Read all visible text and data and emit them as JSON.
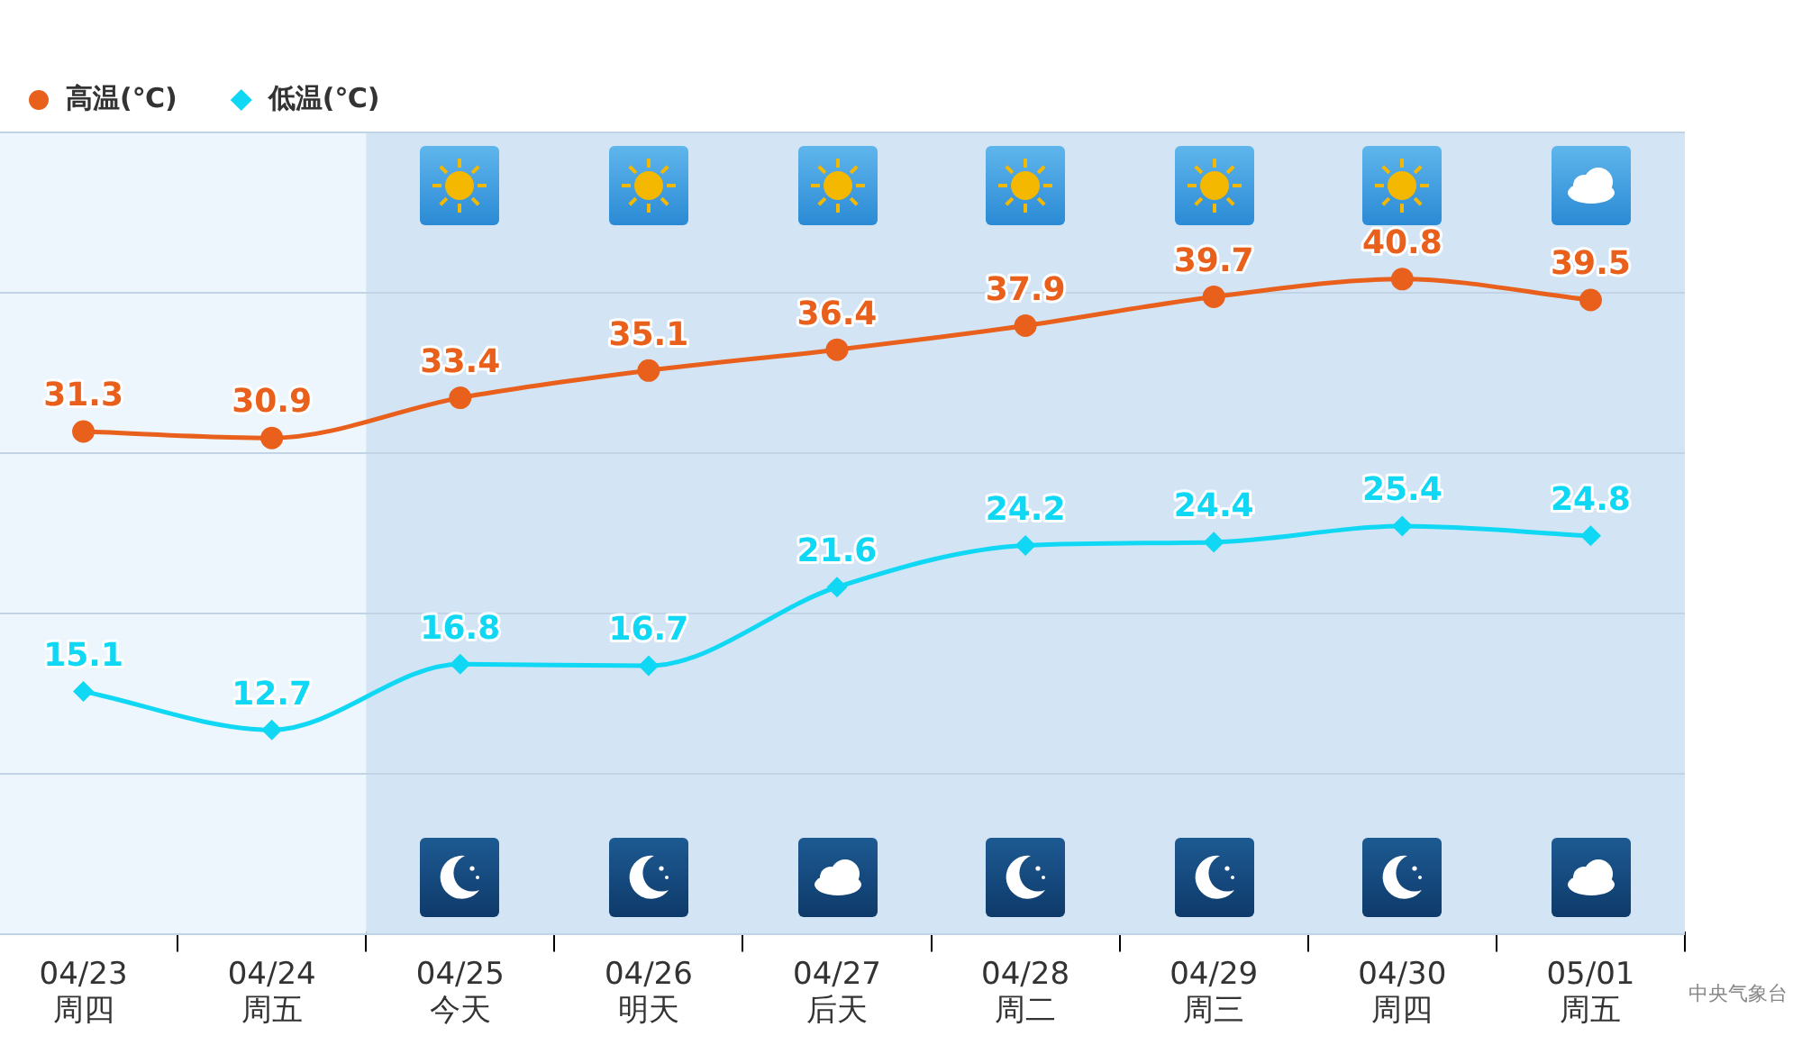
{
  "chart_data": {
    "type": "line",
    "categories": [
      "04/23 周四",
      "04/24 周五",
      "04/25 今天",
      "04/26 明天",
      "04/27 后天",
      "04/28 周二",
      "04/29 周三",
      "04/30 周四",
      "05/01 周五"
    ],
    "series": [
      {
        "name": "高温(℃)",
        "color": "#e8601c",
        "marker": "circle",
        "values": [
          31.3,
          30.9,
          33.4,
          35.1,
          36.4,
          37.9,
          39.7,
          40.8,
          39.5
        ]
      },
      {
        "name": "低温(℃)",
        "color": "#10d8f4",
        "marker": "diamond",
        "values": [
          15.1,
          12.7,
          16.8,
          16.7,
          21.6,
          24.2,
          24.4,
          25.4,
          24.8
        ]
      }
    ],
    "ylim": [
      0,
      50
    ],
    "yticks": [
      {
        "value": 0,
        "label": null
      },
      {
        "value": 10,
        "label": null
      },
      {
        "value": 20,
        "label": null
      },
      {
        "value": 30,
        "label": null
      },
      {
        "value": 40,
        "label": null
      },
      {
        "value": 50,
        "label": null
      }
    ],
    "tick_labels": "x",
    "grid": "y",
    "legend": "top left",
    "data_labels": true,
    "bands": [
      {
        "axis": "x",
        "from": "04/23 周四",
        "to": "04/24 周五",
        "color": "#eef6fd"
      },
      {
        "axis": "x",
        "from": "04/25 今天",
        "to": "05/01 周五",
        "color": "#d3e4f5"
      }
    ],
    "annotations": [
      "中央气象台"
    ]
  }
}
